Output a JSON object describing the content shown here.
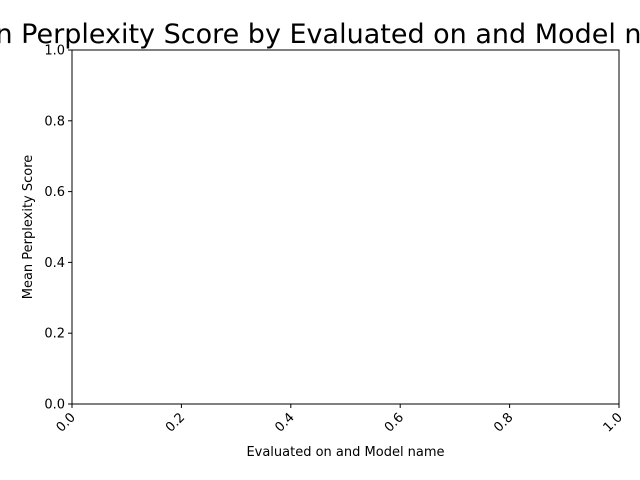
{
  "chart_data": {
    "type": "bar",
    "title": "Mean Perplexity Score by Evaluated on and Model name",
    "xlabel": "Evaluated on and Model name",
    "ylabel": "Mean Perplexity Score",
    "categories": [],
    "series": [],
    "xlim": [
      0.0,
      1.0
    ],
    "ylim": [
      0.0,
      1.0
    ],
    "x_ticks": [
      "0.0",
      "0.2",
      "0.4",
      "0.6",
      "0.8",
      "1.0"
    ],
    "y_ticks": [
      "0.0",
      "0.2",
      "0.4",
      "0.6",
      "0.8",
      "1.0"
    ],
    "grid": false,
    "legend": "none",
    "colors": {
      "frame": "#000000",
      "background": "#ffffff",
      "text": "#000000"
    }
  }
}
